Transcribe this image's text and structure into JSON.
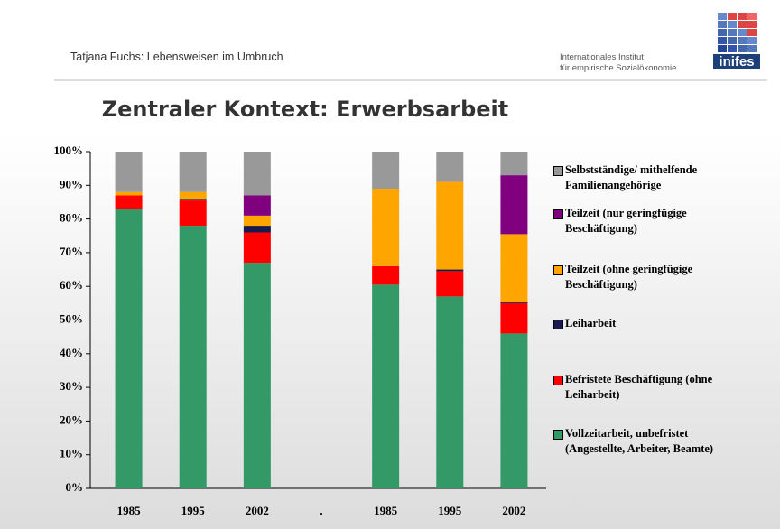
{
  "header": {
    "author": "Tatjana Fuchs: Lebensweisen im Umbruch",
    "institute_line1": "Internationales Institut",
    "institute_line2": "für empirische Sozialökonomie",
    "logo": "inifes"
  },
  "chart_data": {
    "type": "stacked_bar",
    "title": "Zentraler Kontext: Erwerbsarbeit",
    "categories": [
      "1985",
      "1995",
      "2002",
      ".",
      "1985",
      "1995",
      "2002"
    ],
    "series": [
      {
        "name": "Vollzeitarbeit, unbefristet (Angestellte, Arbeiter, Beamte)",
        "color": "#339966",
        "values": [
          83,
          78,
          67,
          null,
          60.5,
          57,
          46
        ]
      },
      {
        "name": "Befristete Beschäftigung (ohne Leiharbeit)",
        "color": "#ff0000",
        "values": [
          4,
          7.5,
          9,
          null,
          5.5,
          7.5,
          9
        ]
      },
      {
        "name": "Leiharbeit",
        "color": "#1a1a4e",
        "values": [
          0,
          0.5,
          2,
          null,
          0,
          0.5,
          0.5
        ]
      },
      {
        "name": "Teilzeit (ohne geringfügige Beschäftigung)",
        "color": "#ffa500",
        "values": [
          1,
          2,
          3,
          null,
          23,
          26,
          20
        ]
      },
      {
        "name": "Teilzeit (nur geringfügige Beschäftigung)",
        "color": "#800080",
        "values": [
          0,
          0,
          6,
          null,
          0,
          0,
          17.5
        ]
      },
      {
        "name": "Selbstständige/ mithelfende Familienangehörige",
        "color": "#999999",
        "values": [
          12,
          12,
          13,
          null,
          11,
          9,
          7
        ]
      }
    ],
    "ylim": [
      0,
      100
    ],
    "yticks": [
      {
        "value": 0,
        "label": "0%"
      },
      {
        "value": 10,
        "label": "10%"
      },
      {
        "value": 20,
        "label": "20%"
      },
      {
        "value": 30,
        "label": "30%"
      },
      {
        "value": 40,
        "label": "40%"
      },
      {
        "value": 50,
        "label": "50%"
      },
      {
        "value": 60,
        "label": "60%"
      },
      {
        "value": 70,
        "label": "70%"
      },
      {
        "value": 80,
        "label": "80%"
      },
      {
        "value": 90,
        "label": "90%"
      },
      {
        "value": 100,
        "label": "100%"
      }
    ]
  }
}
